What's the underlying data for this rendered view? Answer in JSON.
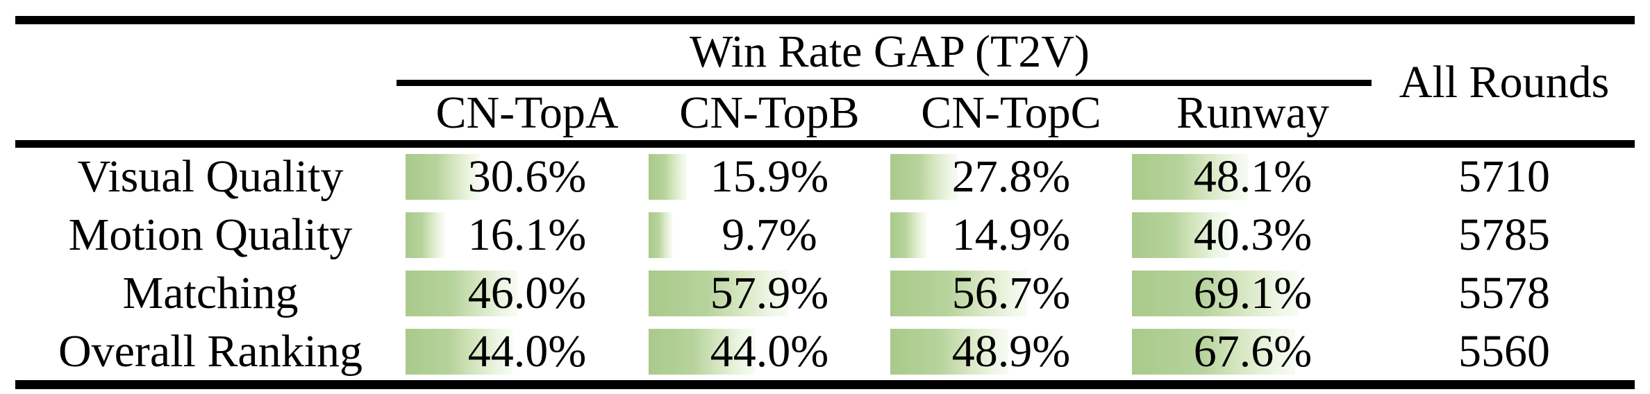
{
  "table": {
    "group_header": "Win Rate GAP (T2V)",
    "rounds_header": "All Rounds",
    "method_columns": [
      "CN-TopA",
      "CN-TopB",
      "CN-TopC",
      "Runway"
    ],
    "rows": [
      {
        "label": "Visual Quality",
        "win_rates": [
          "30.6%",
          "15.9%",
          "27.8%",
          "48.1%"
        ],
        "all_rounds": "5710"
      },
      {
        "label": "Motion Quality",
        "win_rates": [
          "16.1%",
          "9.7%",
          "14.9%",
          "40.3%"
        ],
        "all_rounds": "5785"
      },
      {
        "label": "Matching",
        "win_rates": [
          "46.0%",
          "57.9%",
          "56.7%",
          "69.1%"
        ],
        "all_rounds": "5578"
      },
      {
        "label": "Overall Ranking",
        "win_rates": [
          "44.0%",
          "44.0%",
          "48.9%",
          "67.6%"
        ],
        "all_rounds": "5560"
      }
    ]
  },
  "chart_data": {
    "type": "table",
    "title": "Win Rate GAP (T2V)",
    "categories": [
      "Visual Quality",
      "Motion Quality",
      "Matching",
      "Overall Ranking"
    ],
    "series": [
      {
        "name": "CN-TopA",
        "values": [
          30.6,
          16.1,
          46.0,
          44.0
        ]
      },
      {
        "name": "CN-TopB",
        "values": [
          15.9,
          9.7,
          57.9,
          44.0
        ]
      },
      {
        "name": "CN-TopC",
        "values": [
          27.8,
          14.9,
          56.7,
          48.9
        ]
      },
      {
        "name": "Runway",
        "values": [
          48.1,
          40.3,
          69.1,
          67.6
        ]
      }
    ],
    "all_rounds": [
      5710,
      5785,
      5578,
      5560
    ],
    "bar_scale_max_percent": 100,
    "unit": "%"
  },
  "colors": {
    "bar_green": "#a9ca8b",
    "bar_green_mid": "#b7d39c",
    "bar_fade": "#eff6e6",
    "rule": "#000000",
    "background": "#ffffff",
    "text": "#000000"
  }
}
